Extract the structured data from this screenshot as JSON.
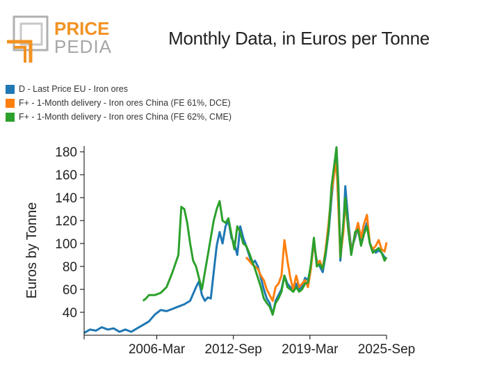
{
  "brand": {
    "line1": "PRICE",
    "line2": "PEDIA"
  },
  "colors": {
    "blue": "#1f77b4",
    "orange": "#ff7f0e",
    "green": "#2ca02c",
    "brand_orange": "#f29222",
    "brand_gray": "#b0b0b0"
  },
  "chart_data": {
    "type": "line",
    "title": "Monthly Data, in Euros per Tonne",
    "ylabel": "Euros by Tonne",
    "xlabel": "",
    "ylim": [
      20,
      185
    ],
    "yticks": [
      40,
      60,
      80,
      100,
      120,
      140,
      160,
      180
    ],
    "xlim": [
      "2000-01",
      "2025-09"
    ],
    "xticks": [
      {
        "date": "2006-03",
        "label": "2006-Mar"
      },
      {
        "date": "2012-09",
        "label": "2012-Sep"
      },
      {
        "date": "2019-03",
        "label": "2019-Mar"
      },
      {
        "date": "2025-09",
        "label": "2025-Sep"
      }
    ],
    "legend_position": "top-left",
    "grid": false,
    "series": [
      {
        "name": "D - Last Price EU - Iron ores",
        "color": "#1f77b4",
        "points": [
          [
            "2000-01",
            22
          ],
          [
            "2000-07",
            25
          ],
          [
            "2001-01",
            24
          ],
          [
            "2001-07",
            27
          ],
          [
            "2002-01",
            25
          ],
          [
            "2002-07",
            26
          ],
          [
            "2003-01",
            23
          ],
          [
            "2003-07",
            25
          ],
          [
            "2004-01",
            23
          ],
          [
            "2004-07",
            26
          ],
          [
            "2005-01",
            29
          ],
          [
            "2005-07",
            32
          ],
          [
            "2006-01",
            38
          ],
          [
            "2006-07",
            42
          ],
          [
            "2007-01",
            41
          ],
          [
            "2007-07",
            43
          ],
          [
            "2008-01",
            45
          ],
          [
            "2008-07",
            47
          ],
          [
            "2009-01",
            50
          ],
          [
            "2009-07",
            62
          ],
          [
            "2009-10",
            67
          ],
          [
            "2010-01",
            55
          ],
          [
            "2010-04",
            50
          ],
          [
            "2010-07",
            53
          ],
          [
            "2010-10",
            52
          ],
          [
            "2011-01",
            75
          ],
          [
            "2011-04",
            98
          ],
          [
            "2011-07",
            110
          ],
          [
            "2011-10",
            100
          ],
          [
            "2012-01",
            115
          ],
          [
            "2012-04",
            120
          ],
          [
            "2012-07",
            105
          ],
          [
            "2012-10",
            100
          ],
          [
            "2013-01",
            90
          ],
          [
            "2013-04",
            115
          ],
          [
            "2013-07",
            105
          ],
          [
            "2013-10",
            98
          ],
          [
            "2014-01",
            90
          ],
          [
            "2014-04",
            82
          ],
          [
            "2014-07",
            85
          ],
          [
            "2014-10",
            80
          ],
          [
            "2015-01",
            70
          ],
          [
            "2015-04",
            60
          ],
          [
            "2015-07",
            52
          ],
          [
            "2015-10",
            48
          ],
          [
            "2016-01",
            38
          ],
          [
            "2016-04",
            50
          ],
          [
            "2016-07",
            55
          ],
          [
            "2016-10",
            60
          ],
          [
            "2017-01",
            72
          ],
          [
            "2017-04",
            65
          ],
          [
            "2017-07",
            62
          ],
          [
            "2017-10",
            58
          ],
          [
            "2018-01",
            65
          ],
          [
            "2018-04",
            60
          ],
          [
            "2018-07",
            62
          ],
          [
            "2018-10",
            70
          ],
          [
            "2019-01",
            68
          ],
          [
            "2019-04",
            80
          ],
          [
            "2019-07",
            100
          ],
          [
            "2019-10",
            85
          ],
          [
            "2020-01",
            80
          ],
          [
            "2020-04",
            75
          ],
          [
            "2020-07",
            90
          ],
          [
            "2020-10",
            110
          ],
          [
            "2021-01",
            140
          ],
          [
            "2021-04",
            165
          ],
          [
            "2021-06",
            183
          ],
          [
            "2021-08",
            150
          ],
          [
            "2021-10",
            85
          ],
          [
            "2022-01",
            115
          ],
          [
            "2022-03",
            150
          ],
          [
            "2022-06",
            120
          ],
          [
            "2022-09",
            95
          ],
          [
            "2023-01",
            105
          ],
          [
            "2023-04",
            115
          ],
          [
            "2023-07",
            100
          ],
          [
            "2023-10",
            110
          ],
          [
            "2024-01",
            118
          ],
          [
            "2024-04",
            100
          ],
          [
            "2024-07",
            95
          ],
          [
            "2024-10",
            92
          ],
          [
            "2025-01",
            94
          ],
          [
            "2025-04",
            92
          ],
          [
            "2025-07",
            88
          ],
          [
            "2025-09",
            87
          ]
        ]
      },
      {
        "name": "F+ - 1-Month delivery - Iron ores China (FE 61%, DCE)",
        "color": "#ff7f0e",
        "points": [
          [
            "2013-10",
            88
          ],
          [
            "2014-01",
            85
          ],
          [
            "2014-04",
            82
          ],
          [
            "2014-07",
            80
          ],
          [
            "2014-10",
            78
          ],
          [
            "2015-01",
            72
          ],
          [
            "2015-04",
            68
          ],
          [
            "2015-07",
            60
          ],
          [
            "2015-10",
            55
          ],
          [
            "2016-01",
            50
          ],
          [
            "2016-04",
            62
          ],
          [
            "2016-07",
            65
          ],
          [
            "2016-10",
            72
          ],
          [
            "2017-01",
            103
          ],
          [
            "2017-04",
            85
          ],
          [
            "2017-07",
            70
          ],
          [
            "2017-10",
            60
          ],
          [
            "2018-01",
            72
          ],
          [
            "2018-04",
            62
          ],
          [
            "2018-07",
            65
          ],
          [
            "2018-10",
            68
          ],
          [
            "2019-01",
            62
          ],
          [
            "2019-04",
            78
          ],
          [
            "2019-07",
            103
          ],
          [
            "2019-10",
            82
          ],
          [
            "2020-01",
            85
          ],
          [
            "2020-04",
            78
          ],
          [
            "2020-07",
            95
          ],
          [
            "2020-10",
            118
          ],
          [
            "2021-01",
            145
          ],
          [
            "2021-04",
            162
          ],
          [
            "2021-06",
            170
          ],
          [
            "2021-08",
            130
          ],
          [
            "2021-10",
            88
          ],
          [
            "2022-01",
            110
          ],
          [
            "2022-03",
            135
          ],
          [
            "2022-06",
            115
          ],
          [
            "2022-09",
            92
          ],
          [
            "2023-01",
            108
          ],
          [
            "2023-04",
            118
          ],
          [
            "2023-07",
            105
          ],
          [
            "2023-10",
            117
          ],
          [
            "2024-01",
            125
          ],
          [
            "2024-04",
            100
          ],
          [
            "2024-07",
            95
          ],
          [
            "2024-10",
            98
          ],
          [
            "2025-01",
            103
          ],
          [
            "2025-04",
            95
          ],
          [
            "2025-07",
            93
          ],
          [
            "2025-09",
            101
          ]
        ]
      },
      {
        "name": "F+ - 1-Month delivery - Iron ores China (FE 62%, CME)",
        "color": "#2ca02c",
        "points": [
          [
            "2005-01",
            50
          ],
          [
            "2005-04",
            52
          ],
          [
            "2005-07",
            55
          ],
          [
            "2006-01",
            55
          ],
          [
            "2006-07",
            57
          ],
          [
            "2007-01",
            62
          ],
          [
            "2007-07",
            75
          ],
          [
            "2008-01",
            90
          ],
          [
            "2008-04",
            132
          ],
          [
            "2008-07",
            130
          ],
          [
            "2008-10",
            118
          ],
          [
            "2009-01",
            100
          ],
          [
            "2009-04",
            85
          ],
          [
            "2009-07",
            80
          ],
          [
            "2009-10",
            70
          ],
          [
            "2010-01",
            60
          ],
          [
            "2010-04",
            75
          ],
          [
            "2010-07",
            90
          ],
          [
            "2010-10",
            105
          ],
          [
            "2011-01",
            120
          ],
          [
            "2011-04",
            130
          ],
          [
            "2011-07",
            137
          ],
          [
            "2011-10",
            120
          ],
          [
            "2012-01",
            118
          ],
          [
            "2012-04",
            122
          ],
          [
            "2012-07",
            108
          ],
          [
            "2012-10",
            95
          ],
          [
            "2013-01",
            115
          ],
          [
            "2013-04",
            110
          ],
          [
            "2013-07",
            100
          ],
          [
            "2013-10",
            98
          ],
          [
            "2014-01",
            92
          ],
          [
            "2014-04",
            85
          ],
          [
            "2014-07",
            78
          ],
          [
            "2014-10",
            70
          ],
          [
            "2015-01",
            62
          ],
          [
            "2015-04",
            52
          ],
          [
            "2015-07",
            48
          ],
          [
            "2015-10",
            45
          ],
          [
            "2016-01",
            38
          ],
          [
            "2016-04",
            48
          ],
          [
            "2016-07",
            52
          ],
          [
            "2016-10",
            58
          ],
          [
            "2017-01",
            72
          ],
          [
            "2017-04",
            62
          ],
          [
            "2017-07",
            60
          ],
          [
            "2017-10",
            58
          ],
          [
            "2018-01",
            62
          ],
          [
            "2018-04",
            58
          ],
          [
            "2018-07",
            60
          ],
          [
            "2018-10",
            65
          ],
          [
            "2019-01",
            66
          ],
          [
            "2019-04",
            82
          ],
          [
            "2019-07",
            105
          ],
          [
            "2019-10",
            80
          ],
          [
            "2020-01",
            82
          ],
          [
            "2020-04",
            78
          ],
          [
            "2020-07",
            92
          ],
          [
            "2020-10",
            112
          ],
          [
            "2021-01",
            150
          ],
          [
            "2021-04",
            170
          ],
          [
            "2021-06",
            184
          ],
          [
            "2021-08",
            145
          ],
          [
            "2021-10",
            88
          ],
          [
            "2022-01",
            118
          ],
          [
            "2022-03",
            140
          ],
          [
            "2022-06",
            112
          ],
          [
            "2022-09",
            90
          ],
          [
            "2023-01",
            110
          ],
          [
            "2023-04",
            112
          ],
          [
            "2023-07",
            98
          ],
          [
            "2023-10",
            108
          ],
          [
            "2024-01",
            115
          ],
          [
            "2024-04",
            100
          ],
          [
            "2024-07",
            92
          ],
          [
            "2024-10",
            94
          ],
          [
            "2025-01",
            96
          ],
          [
            "2025-04",
            92
          ],
          [
            "2025-07",
            85
          ],
          [
            "2025-09",
            88
          ]
        ]
      }
    ]
  }
}
